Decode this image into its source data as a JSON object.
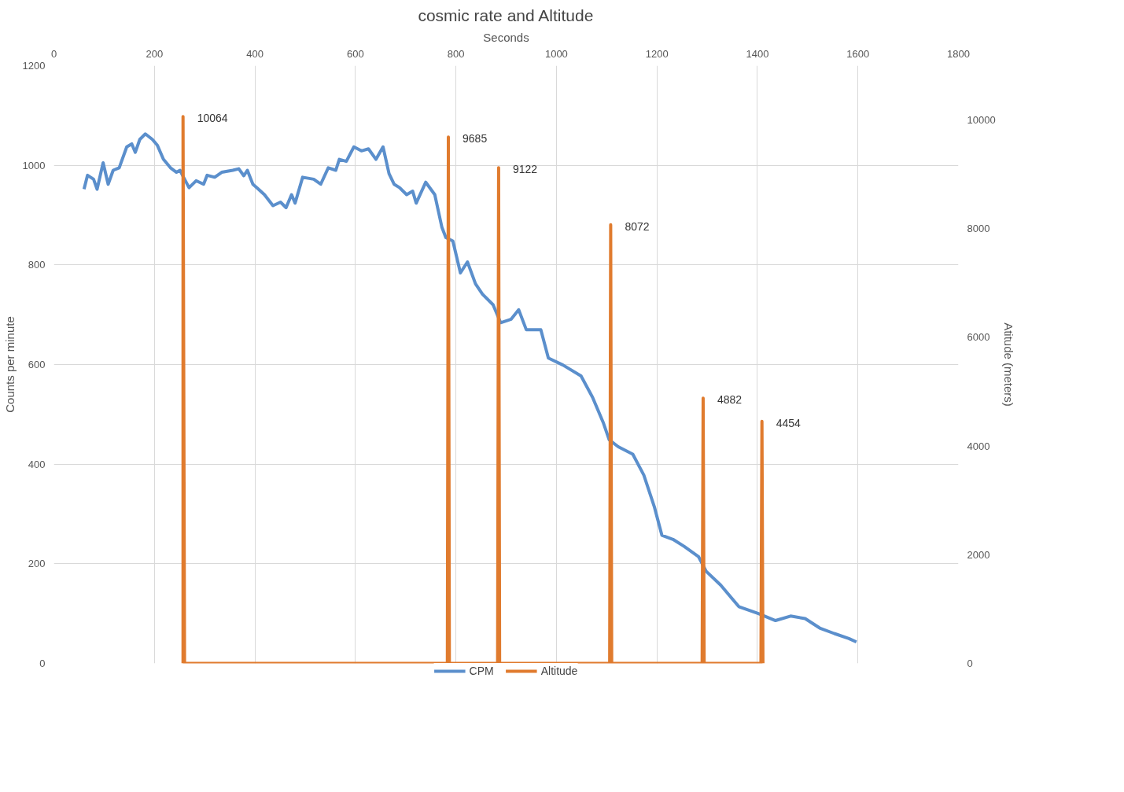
{
  "chart_data": {
    "type": "line",
    "title": "cosmic rate and Altitude",
    "xlabel": "Seconds",
    "ylabel": "Counts per minute",
    "y2label": "Atitude (meters)",
    "xlim": [
      0,
      1800
    ],
    "xticks": [
      0,
      200,
      400,
      600,
      800,
      1000,
      1200,
      1400,
      1600,
      1800
    ],
    "ylim": [
      0,
      1200
    ],
    "yticks": [
      0,
      200,
      400,
      600,
      800,
      1000,
      1200
    ],
    "y2lim": [
      0,
      11000
    ],
    "y2ticks": [
      0,
      2000,
      4000,
      6000,
      8000,
      10000
    ],
    "grid": true,
    "legend": "bottom",
    "series": [
      {
        "name": "CPM",
        "color": "#5b8fcc",
        "x": [
          60,
          67,
          79,
          86,
          98,
          108,
          118,
          130,
          145,
          155,
          162,
          171,
          182,
          196,
          206,
          218,
          232,
          244,
          251,
          258,
          269,
          283,
          298,
          305,
          320,
          334,
          356,
          368,
          378,
          385,
          396,
          404,
          419,
          436,
          451,
          462,
          473,
          480,
          495,
          517,
          531,
          546,
          561,
          568,
          582,
          597,
          612,
          626,
          641,
          655,
          667,
          677,
          688,
          702,
          714,
          721,
          740,
          758,
          772,
          780,
          794,
          809,
          823,
          839,
          853,
          874,
          889,
          910,
          925,
          940,
          969,
          984,
          1013,
          1049,
          1072,
          1093,
          1105,
          1123,
          1152,
          1174,
          1195,
          1210,
          1232,
          1254,
          1283,
          1298,
          1327,
          1363,
          1402,
          1436,
          1466,
          1495,
          1524,
          1553,
          1582,
          1597
        ],
        "values": [
          952,
          980,
          972,
          952,
          1005,
          962,
          990,
          995,
          1037,
          1043,
          1026,
          1052,
          1063,
          1052,
          1040,
          1012,
          995,
          986,
          990,
          976,
          955,
          969,
          962,
          980,
          976,
          986,
          990,
          993,
          979,
          990,
          962,
          955,
          941,
          919,
          926,
          915,
          941,
          924,
          976,
          972,
          962,
          995,
          990,
          1012,
          1008,
          1037,
          1029,
          1033,
          1012,
          1037,
          983,
          962,
          955,
          941,
          948,
          924,
          966,
          941,
          876,
          855,
          848,
          784,
          806,
          762,
          741,
          720,
          684,
          691,
          710,
          670,
          670,
          613,
          599,
          577,
          534,
          484,
          449,
          435,
          420,
          378,
          314,
          257,
          249,
          235,
          214,
          185,
          157,
          114,
          100,
          86,
          95,
          90,
          71,
          60,
          50,
          43
        ]
      },
      {
        "name": "Altitude",
        "color": "#e07b2e",
        "axis": "y2",
        "x": [
          257,
          257,
          260,
          783,
          785,
          787,
          883,
          885,
          887,
          1106,
          1108,
          1110,
          1290,
          1292,
          1294,
          1407,
          1409,
          1411
        ],
        "values": [
          0,
          10064,
          0,
          0,
          9685,
          0,
          0,
          9122,
          0,
          0,
          8072,
          0,
          0,
          4882,
          0,
          0,
          4454,
          0
        ],
        "value_labels": [
          null,
          "10064",
          null,
          null,
          "9685",
          null,
          null,
          "9122",
          null,
          null,
          "8072",
          null,
          null,
          "4882",
          null,
          null,
          "4454",
          null
        ]
      }
    ]
  }
}
